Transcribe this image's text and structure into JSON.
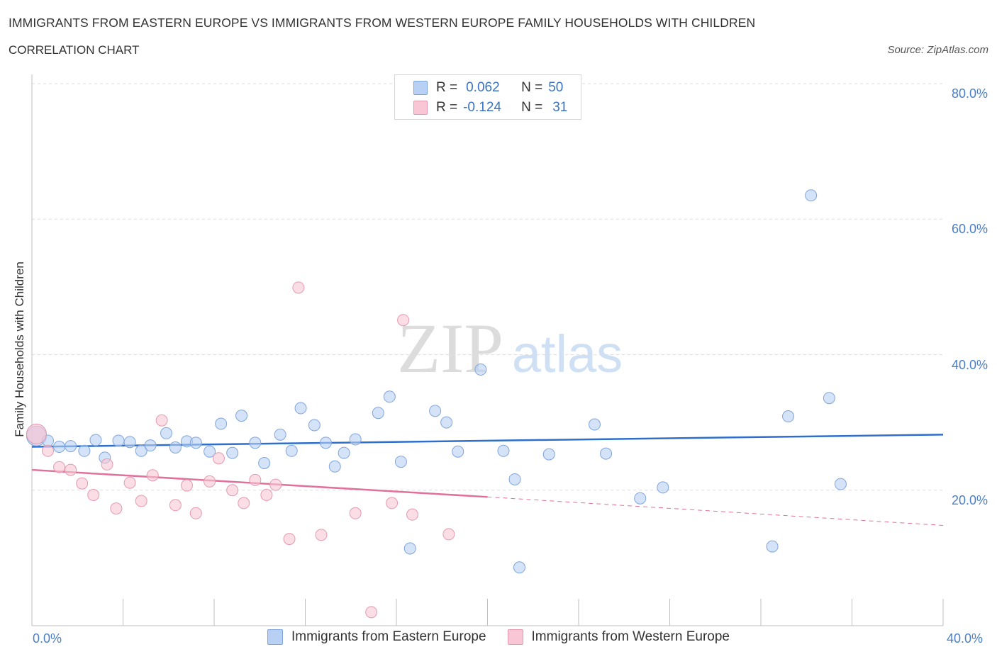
{
  "title": "IMMIGRANTS FROM EASTERN EUROPE VS IMMIGRANTS FROM WESTERN EUROPE FAMILY HOUSEHOLDS WITH CHILDREN",
  "subtitle": "CORRELATION CHART",
  "source": "Source: ZipAtlas.com",
  "watermark": {
    "zip": "ZIP",
    "atlas": "atlas"
  },
  "colors": {
    "eastern": "#b8d0f3",
    "eastern_line": "#2e6fcc",
    "western": "#f8c6d4",
    "western_line": "#e0719a",
    "tick_text": "#4a7fc8"
  },
  "stats": {
    "eastern": {
      "r_label": "R =",
      "r": "0.062",
      "n_label": "N =",
      "n": "50"
    },
    "western": {
      "r_label": "R =",
      "r": "-0.124",
      "n_label": "N =",
      "n": "31"
    }
  },
  "legend": {
    "eastern": "Immigrants from Eastern Europe",
    "western": "Immigrants from Western Europe"
  },
  "chart_data": {
    "type": "scatter",
    "title": "IMMIGRANTS FROM EASTERN EUROPE VS IMMIGRANTS FROM WESTERN EUROPE FAMILY HOUSEHOLDS WITH CHILDREN",
    "xlabel": "",
    "ylabel": "Family Households with Children",
    "xlim": [
      0,
      40
    ],
    "ylim": [
      0,
      80
    ],
    "x_tick_labels": [
      "0.0%",
      "40.0%"
    ],
    "y_ticks": [
      20,
      40,
      60,
      80
    ],
    "y_tick_labels": [
      "20.0%",
      "40.0%",
      "60.0%",
      "80.0%"
    ],
    "grid": true,
    "legend_position": "bottom",
    "series": [
      {
        "name": "Immigrants from Eastern Europe",
        "trend": {
          "x": [
            0.0,
            40.0
          ],
          "y": [
            26.4,
            28.2
          ],
          "dashed": false
        },
        "points": [
          {
            "x": 0.2,
            "y": 28.0,
            "size": "large"
          },
          {
            "x": 0.7,
            "y": 27.3
          },
          {
            "x": 1.2,
            "y": 26.4
          },
          {
            "x": 1.7,
            "y": 26.5
          },
          {
            "x": 2.3,
            "y": 25.8
          },
          {
            "x": 2.8,
            "y": 27.4
          },
          {
            "x": 3.2,
            "y": 24.8
          },
          {
            "x": 3.8,
            "y": 27.3
          },
          {
            "x": 4.3,
            "y": 27.1
          },
          {
            "x": 4.8,
            "y": 25.8
          },
          {
            "x": 5.2,
            "y": 26.6
          },
          {
            "x": 5.9,
            "y": 28.4
          },
          {
            "x": 6.3,
            "y": 26.3
          },
          {
            "x": 6.8,
            "y": 27.2
          },
          {
            "x": 7.2,
            "y": 27.0
          },
          {
            "x": 7.8,
            "y": 25.7
          },
          {
            "x": 8.3,
            "y": 29.8
          },
          {
            "x": 8.8,
            "y": 25.5
          },
          {
            "x": 9.2,
            "y": 31.0
          },
          {
            "x": 9.8,
            "y": 27.0
          },
          {
            "x": 10.2,
            "y": 24.0
          },
          {
            "x": 10.9,
            "y": 28.2
          },
          {
            "x": 11.4,
            "y": 25.8
          },
          {
            "x": 11.8,
            "y": 32.1
          },
          {
            "x": 12.4,
            "y": 29.6
          },
          {
            "x": 12.9,
            "y": 27.0
          },
          {
            "x": 13.3,
            "y": 23.5
          },
          {
            "x": 13.7,
            "y": 25.5
          },
          {
            "x": 14.2,
            "y": 27.5
          },
          {
            "x": 15.2,
            "y": 31.4
          },
          {
            "x": 15.7,
            "y": 33.8
          },
          {
            "x": 16.2,
            "y": 24.2
          },
          {
            "x": 16.6,
            "y": 11.4
          },
          {
            "x": 17.7,
            "y": 31.7
          },
          {
            "x": 18.2,
            "y": 30.0
          },
          {
            "x": 18.7,
            "y": 25.7
          },
          {
            "x": 19.7,
            "y": 37.8
          },
          {
            "x": 20.7,
            "y": 25.8
          },
          {
            "x": 21.2,
            "y": 21.6
          },
          {
            "x": 21.4,
            "y": 8.6
          },
          {
            "x": 22.7,
            "y": 25.3
          },
          {
            "x": 24.7,
            "y": 29.7
          },
          {
            "x": 25.2,
            "y": 25.4
          },
          {
            "x": 26.7,
            "y": 18.8
          },
          {
            "x": 27.7,
            "y": 20.4
          },
          {
            "x": 32.5,
            "y": 11.7
          },
          {
            "x": 33.2,
            "y": 30.9
          },
          {
            "x": 34.2,
            "y": 63.5
          },
          {
            "x": 35.0,
            "y": 33.6
          },
          {
            "x": 35.5,
            "y": 20.9
          }
        ]
      },
      {
        "name": "Immigrants from Western Europe",
        "trend": {
          "x": [
            0.0,
            20.0
          ],
          "y": [
            23.0,
            19.0
          ],
          "dashed_extension": {
            "x": [
              20.0,
              40.0
            ],
            "y": [
              19.0,
              14.8
            ]
          }
        },
        "points": [
          {
            "x": 0.2,
            "y": 28.3,
            "size": "large"
          },
          {
            "x": 0.7,
            "y": 25.8
          },
          {
            "x": 1.2,
            "y": 23.4
          },
          {
            "x": 1.7,
            "y": 23.0
          },
          {
            "x": 2.2,
            "y": 21.0
          },
          {
            "x": 2.7,
            "y": 19.3
          },
          {
            "x": 3.3,
            "y": 23.8
          },
          {
            "x": 3.7,
            "y": 17.3
          },
          {
            "x": 4.3,
            "y": 21.1
          },
          {
            "x": 4.8,
            "y": 18.4
          },
          {
            "x": 5.3,
            "y": 22.2
          },
          {
            "x": 5.7,
            "y": 30.3
          },
          {
            "x": 6.3,
            "y": 17.8
          },
          {
            "x": 6.8,
            "y": 20.7
          },
          {
            "x": 7.2,
            "y": 16.6
          },
          {
            "x": 7.8,
            "y": 21.3
          },
          {
            "x": 8.2,
            "y": 24.7
          },
          {
            "x": 8.8,
            "y": 20.0
          },
          {
            "x": 9.3,
            "y": 18.1
          },
          {
            "x": 9.8,
            "y": 21.5
          },
          {
            "x": 10.3,
            "y": 19.3
          },
          {
            "x": 10.7,
            "y": 20.8
          },
          {
            "x": 11.3,
            "y": 12.8
          },
          {
            "x": 11.7,
            "y": 49.9
          },
          {
            "x": 12.7,
            "y": 13.4
          },
          {
            "x": 14.2,
            "y": 16.6
          },
          {
            "x": 15.8,
            "y": 18.1
          },
          {
            "x": 16.3,
            "y": 45.1
          },
          {
            "x": 16.7,
            "y": 16.4
          },
          {
            "x": 18.3,
            "y": 13.5
          },
          {
            "x": 14.9,
            "y": 2.0
          }
        ]
      }
    ]
  }
}
